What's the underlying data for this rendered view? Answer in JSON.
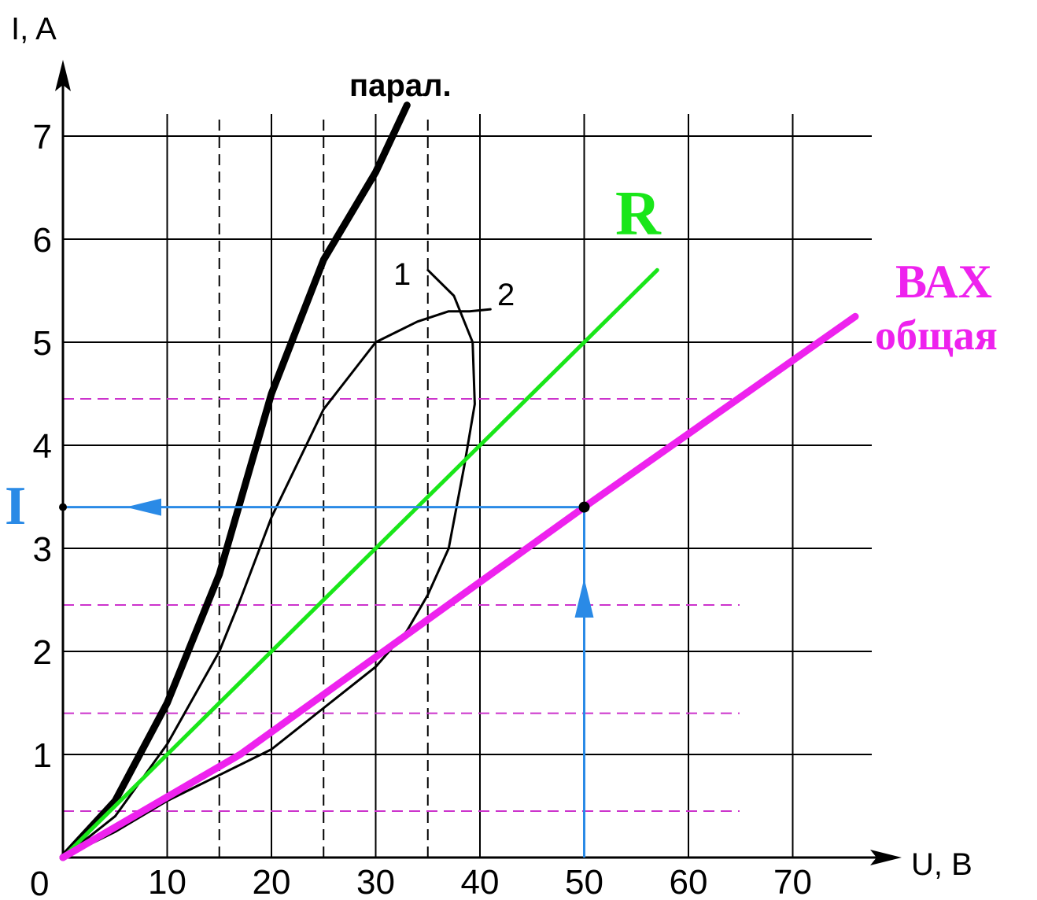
{
  "chart_data": {
    "type": "line",
    "ylabel": "I, A",
    "xlabel": "U, B",
    "origin_label": "0",
    "xlim": [
      0,
      76
    ],
    "ylim": [
      0,
      7.5
    ],
    "grid": true,
    "x_ticks": [
      {
        "v": 10,
        "label": "10"
      },
      {
        "v": 20,
        "label": "20"
      },
      {
        "v": 30,
        "label": "30"
      },
      {
        "v": 40,
        "label": "40"
      },
      {
        "v": 50,
        "label": "50"
      },
      {
        "v": 60,
        "label": "60"
      },
      {
        "v": 70,
        "label": "70"
      }
    ],
    "y_ticks": [
      {
        "v": 1,
        "label": "1"
      },
      {
        "v": 2,
        "label": "2"
      },
      {
        "v": 3,
        "label": "3"
      },
      {
        "v": 4,
        "label": "4"
      },
      {
        "v": 5,
        "label": "5"
      },
      {
        "v": 6,
        "label": "6"
      },
      {
        "v": 7,
        "label": "7"
      }
    ],
    "series": [
      {
        "name": "парал.",
        "color": "#000000",
        "width": 9,
        "points": [
          [
            0,
            0
          ],
          [
            5,
            0.55
          ],
          [
            10,
            1.5
          ],
          [
            15,
            2.75
          ],
          [
            20,
            4.5
          ],
          [
            25,
            5.8
          ],
          [
            30,
            6.65
          ],
          [
            33,
            7.3
          ]
        ]
      },
      {
        "name": "1",
        "color": "#000000",
        "width": 3,
        "points": [
          [
            0,
            0
          ],
          [
            5,
            0.4
          ],
          [
            10,
            1.1
          ],
          [
            15,
            2.0
          ],
          [
            17,
            2.5
          ],
          [
            20,
            3.3
          ],
          [
            25,
            4.35
          ],
          [
            30,
            5.0
          ],
          [
            34,
            5.2
          ],
          [
            37,
            5.3
          ],
          [
            39,
            5.3
          ],
          [
            41,
            5.32
          ]
        ]
      },
      {
        "name": "2",
        "color": "#000000",
        "width": 3,
        "points": [
          [
            0,
            0
          ],
          [
            5,
            0.25
          ],
          [
            10,
            0.55
          ],
          [
            15,
            0.8
          ],
          [
            20,
            1.05
          ],
          [
            25,
            1.45
          ],
          [
            30,
            1.85
          ],
          [
            33,
            2.2
          ],
          [
            35,
            2.55
          ],
          [
            37,
            3.0
          ],
          [
            38.5,
            3.8
          ],
          [
            39.5,
            4.4
          ],
          [
            39.3,
            5.0
          ],
          [
            37.5,
            5.45
          ],
          [
            35,
            5.7
          ]
        ]
      },
      {
        "name": "R",
        "color": "#19e619",
        "width": 5,
        "points": [
          [
            0,
            0
          ],
          [
            57,
            5.7
          ]
        ]
      },
      {
        "name": "ВАХ общая",
        "color": "#ee22ee",
        "width": 9,
        "points": [
          [
            0,
            0
          ],
          [
            17,
            1.0
          ],
          [
            50,
            3.4
          ],
          [
            76,
            5.25
          ]
        ]
      }
    ],
    "annotations": {
      "parallel_label": "парал.",
      "curve1_label": "1",
      "curve2_label": "2",
      "r_label": "R",
      "vax_label_line1": "ВАХ",
      "vax_label_line2": "общая",
      "current_label": "I",
      "operating_point": {
        "u": 50,
        "i": 3.4
      },
      "dashed_verticals": [
        15,
        25,
        35
      ],
      "dashed_horizontals": [
        0.45,
        1.4,
        2.45,
        4.45
      ],
      "colors": {
        "grid": "#000000",
        "dashed_black": "#000000",
        "dashed_magenta": "#cc33cc",
        "projection": "#2a8ae6",
        "r_text": "#19e619",
        "vax_text": "#ee22ee",
        "i_text": "#2a8ae6"
      }
    }
  }
}
